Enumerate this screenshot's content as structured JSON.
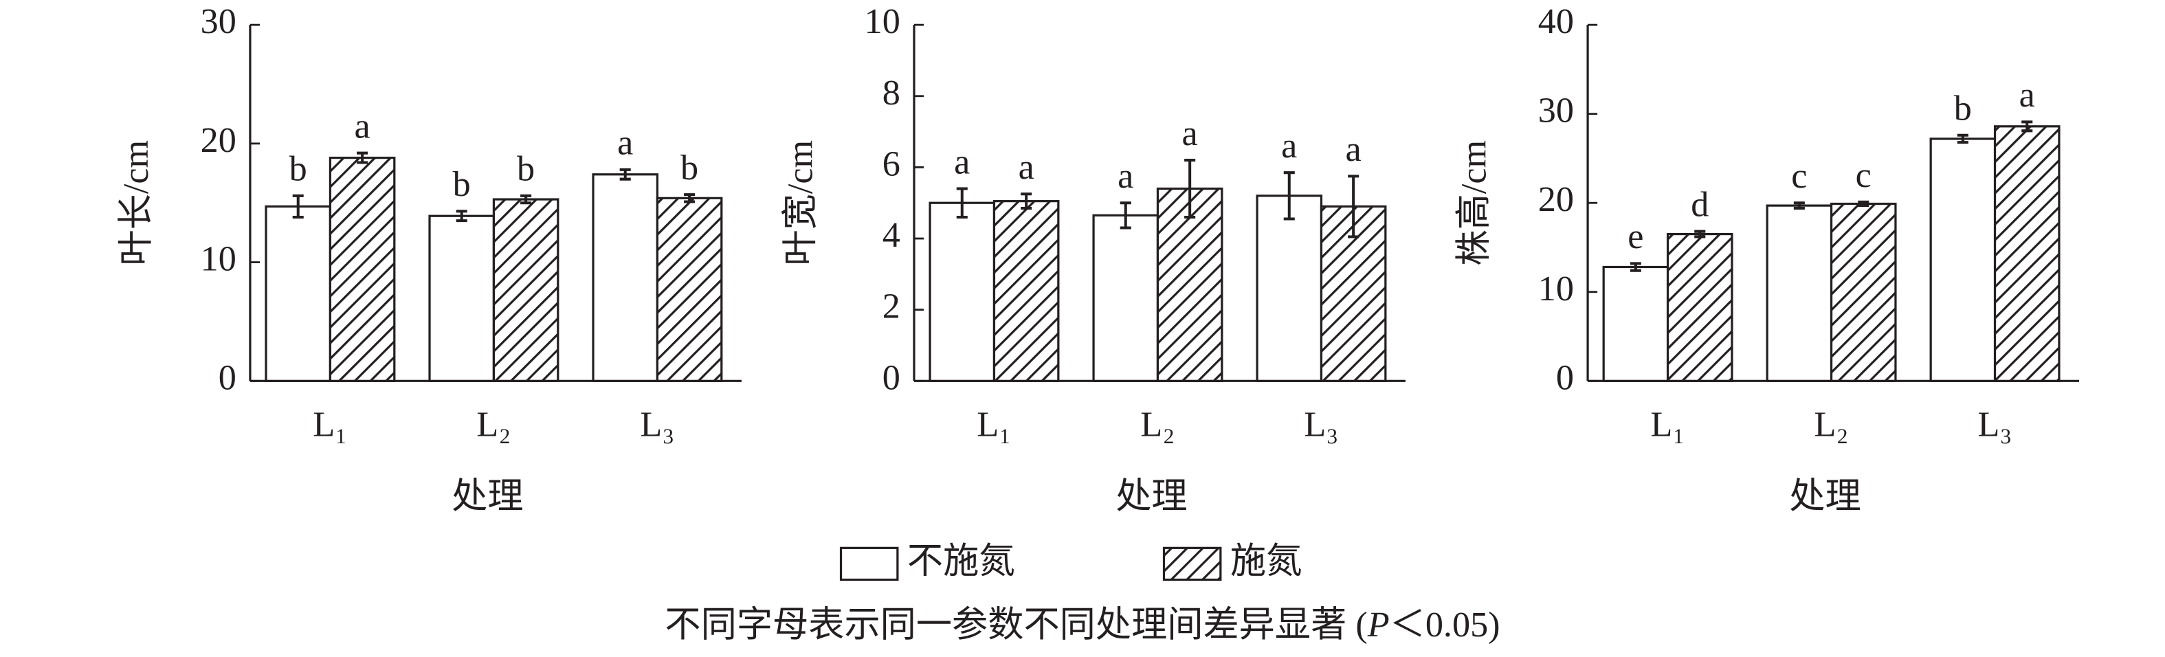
{
  "legend": [
    {
      "name": "不施氮",
      "pattern": "none"
    },
    {
      "name": "施氮",
      "pattern": "hatch"
    }
  ],
  "note": [
    "不同字母表示同一参数不同处理间差异显著 (",
    "P",
    "＜0.05)"
  ],
  "chart_data": [
    {
      "type": "bar",
      "y_label": "叶长/cm",
      "x_label": "处理",
      "categories": [
        "L₁",
        "L₂",
        "L₃"
      ],
      "ylim": [
        0,
        30
      ],
      "yticks": [
        0,
        10,
        20,
        30
      ],
      "series": [
        {
          "values": [
            14.7,
            13.9,
            17.4
          ],
          "errors": [
            0.9,
            0.4,
            0.4
          ],
          "letters": [
            "b",
            "b",
            "a"
          ]
        },
        {
          "values": [
            18.8,
            15.3,
            15.4
          ],
          "errors": [
            0.4,
            0.3,
            0.3
          ],
          "letters": [
            "a",
            "b",
            "b"
          ]
        }
      ]
    },
    {
      "type": "bar",
      "y_label": "叶宽/cm",
      "x_label": "处理",
      "categories": [
        "L₁",
        "L₂",
        "L₃"
      ],
      "ylim": [
        0,
        10
      ],
      "yticks": [
        0,
        2,
        4,
        6,
        8,
        10
      ],
      "series": [
        {
          "values": [
            5.0,
            4.65,
            5.2
          ],
          "errors": [
            0.4,
            0.35,
            0.65
          ],
          "letters": [
            "a",
            "a",
            "a"
          ]
        },
        {
          "values": [
            5.05,
            5.4,
            4.9
          ],
          "errors": [
            0.2,
            0.8,
            0.85
          ],
          "letters": [
            "a",
            "a",
            "a"
          ]
        }
      ]
    },
    {
      "type": "bar",
      "y_label": "株高/cm",
      "x_label": "处理",
      "categories": [
        "L₁",
        "L₂",
        "L₃"
      ],
      "ylim": [
        0,
        40
      ],
      "yticks": [
        0,
        10,
        20,
        30,
        40
      ],
      "series": [
        {
          "values": [
            12.8,
            19.7,
            27.2
          ],
          "errors": [
            0.4,
            0.3,
            0.4
          ],
          "letters": [
            "e",
            "c",
            "b"
          ]
        },
        {
          "values": [
            16.5,
            19.9,
            28.6
          ],
          "errors": [
            0.3,
            0.2,
            0.5
          ],
          "letters": [
            "d",
            "c",
            "a"
          ]
        }
      ]
    }
  ]
}
